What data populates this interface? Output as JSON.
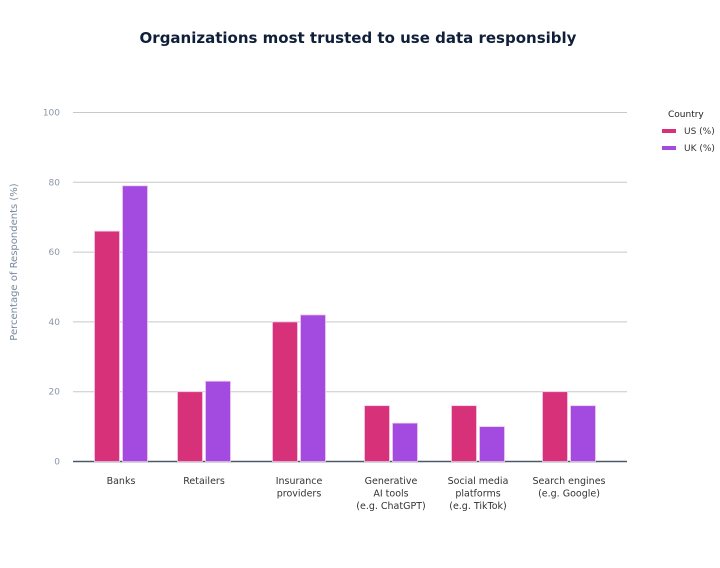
{
  "chart_data": {
    "type": "bar",
    "title": "Organizations most trusted to use data responsibly",
    "xlabel": "",
    "ylabel": "Percentage of Respondents (%)",
    "ylim": [
      0,
      100
    ],
    "yticks": [
      "0",
      "20",
      "40",
      "60",
      "80",
      "100"
    ],
    "grid": true,
    "categories": [
      [
        "Banks"
      ],
      [
        "Retailers"
      ],
      [
        "Insurance",
        "providers"
      ],
      [
        "Generative",
        "AI tools",
        "(e.g. ChatGPT)"
      ],
      [
        "Social media",
        "platforms",
        "(e.g. TikTok)"
      ],
      [
        "Search engines",
        "(e.g. Google)"
      ]
    ],
    "legend": {
      "title": "Country",
      "position": "top-right"
    },
    "series": [
      {
        "name": "US (%)",
        "color": "#d7317a",
        "values": [
          66,
          20,
          40,
          16,
          16,
          20
        ]
      },
      {
        "name": "UK (%)",
        "color": "#a34ae0",
        "values": [
          79,
          23,
          42,
          11,
          10,
          16
        ]
      }
    ]
  }
}
